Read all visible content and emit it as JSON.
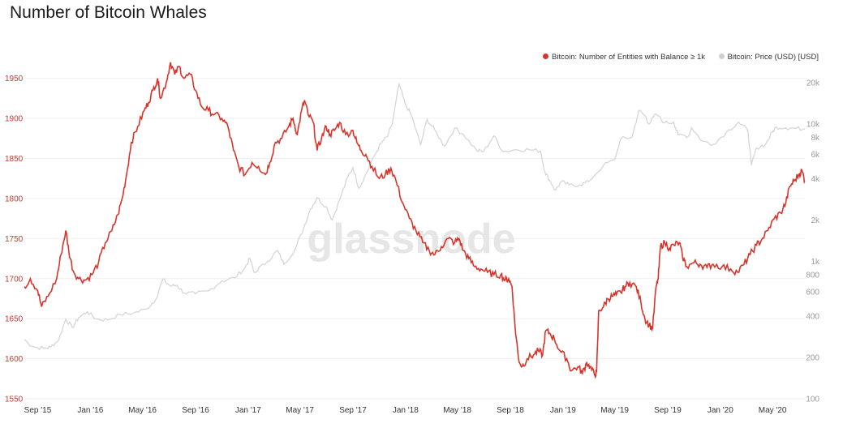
{
  "chart_data": {
    "type": "line",
    "title": "Number of Bitcoin Whales",
    "watermark": "glassnode",
    "legend_position": "top-right",
    "grid": true,
    "y_left": {
      "ylim": [
        1550,
        1975
      ],
      "ticks": [
        1550,
        1600,
        1650,
        1700,
        1750,
        1800,
        1850,
        1900,
        1950
      ]
    },
    "y_right": {
      "scale": "log",
      "ylim": [
        100,
        30000
      ],
      "ticks": [
        100,
        200,
        400,
        600,
        800,
        1000,
        2000,
        4000,
        6000,
        8000,
        10000,
        20000
      ],
      "tick_labels": [
        "100",
        "200",
        "400",
        "600",
        "800",
        "1k",
        "2k",
        "4k",
        "6k",
        "8k",
        "10k",
        "20k"
      ]
    },
    "x": {
      "range": [
        "2015-08-01",
        "2020-07-15"
      ],
      "ticks": [
        {
          "date": "2015-09-01",
          "label": "Sep '15"
        },
        {
          "date": "2016-01-01",
          "label": "Jan '16"
        },
        {
          "date": "2016-05-01",
          "label": "May '16"
        },
        {
          "date": "2016-09-01",
          "label": "Sep '16"
        },
        {
          "date": "2017-01-01",
          "label": "Jan '17"
        },
        {
          "date": "2017-05-01",
          "label": "May '17"
        },
        {
          "date": "2017-09-01",
          "label": "Sep '17"
        },
        {
          "date": "2018-01-01",
          "label": "Jan '18"
        },
        {
          "date": "2018-05-01",
          "label": "May '18"
        },
        {
          "date": "2018-09-01",
          "label": "Sep '18"
        },
        {
          "date": "2019-01-01",
          "label": "Jan '19"
        },
        {
          "date": "2019-05-01",
          "label": "May '19"
        },
        {
          "date": "2019-09-01",
          "label": "Sep '19"
        },
        {
          "date": "2020-01-01",
          "label": "Jan '20"
        },
        {
          "date": "2020-05-01",
          "label": "May '20"
        }
      ]
    },
    "series": [
      {
        "name": "Bitcoin: Number of Entities with Balance ≥ 1k",
        "color": "#d9342b",
        "axis": "left",
        "points": [
          [
            "2015-08-01",
            1690
          ],
          [
            "2015-08-15",
            1700
          ],
          [
            "2015-09-01",
            1685
          ],
          [
            "2015-09-10",
            1665
          ],
          [
            "2015-09-25",
            1678
          ],
          [
            "2015-10-15",
            1700
          ],
          [
            "2015-10-25",
            1730
          ],
          [
            "2015-11-05",
            1760
          ],
          [
            "2015-11-12",
            1735
          ],
          [
            "2015-11-22",
            1710
          ],
          [
            "2015-12-05",
            1700
          ],
          [
            "2015-12-20",
            1698
          ],
          [
            "2016-01-05",
            1705
          ],
          [
            "2016-01-20",
            1720
          ],
          [
            "2016-02-05",
            1745
          ],
          [
            "2016-02-20",
            1760
          ],
          [
            "2016-03-05",
            1780
          ],
          [
            "2016-03-15",
            1800
          ],
          [
            "2016-03-25",
            1830
          ],
          [
            "2016-04-05",
            1870
          ],
          [
            "2016-04-20",
            1890
          ],
          [
            "2016-05-05",
            1910
          ],
          [
            "2016-05-15",
            1920
          ],
          [
            "2016-05-25",
            1935
          ],
          [
            "2016-06-05",
            1950
          ],
          [
            "2016-06-12",
            1925
          ],
          [
            "2016-06-25",
            1945
          ],
          [
            "2016-07-05",
            1970
          ],
          [
            "2016-07-15",
            1955
          ],
          [
            "2016-07-25",
            1965
          ],
          [
            "2016-08-05",
            1950
          ],
          [
            "2016-08-20",
            1955
          ],
          [
            "2016-09-01",
            1935
          ],
          [
            "2016-09-15",
            1915
          ],
          [
            "2016-10-01",
            1910
          ],
          [
            "2016-10-15",
            1905
          ],
          [
            "2016-11-01",
            1900
          ],
          [
            "2016-11-15",
            1890
          ],
          [
            "2016-11-28",
            1860
          ],
          [
            "2016-12-10",
            1840
          ],
          [
            "2016-12-25",
            1830
          ],
          [
            "2017-01-10",
            1845
          ],
          [
            "2017-01-25",
            1840
          ],
          [
            "2017-02-10",
            1830
          ],
          [
            "2017-02-20",
            1845
          ],
          [
            "2017-03-05",
            1870
          ],
          [
            "2017-03-20",
            1875
          ],
          [
            "2017-04-05",
            1890
          ],
          [
            "2017-04-15",
            1900
          ],
          [
            "2017-04-25",
            1880
          ],
          [
            "2017-05-05",
            1910
          ],
          [
            "2017-05-12",
            1922
          ],
          [
            "2017-05-20",
            1905
          ],
          [
            "2017-06-01",
            1895
          ],
          [
            "2017-06-10",
            1860
          ],
          [
            "2017-06-20",
            1875
          ],
          [
            "2017-07-01",
            1890
          ],
          [
            "2017-07-10",
            1880
          ],
          [
            "2017-07-20",
            1885
          ],
          [
            "2017-08-01",
            1895
          ],
          [
            "2017-08-15",
            1880
          ],
          [
            "2017-09-01",
            1885
          ],
          [
            "2017-09-10",
            1870
          ],
          [
            "2017-09-20",
            1860
          ],
          [
            "2017-10-01",
            1855
          ],
          [
            "2017-10-15",
            1840
          ],
          [
            "2017-11-01",
            1825
          ],
          [
            "2017-11-15",
            1830
          ],
          [
            "2017-11-28",
            1838
          ],
          [
            "2017-12-10",
            1822
          ],
          [
            "2017-12-25",
            1795
          ],
          [
            "2018-01-10",
            1775
          ],
          [
            "2018-01-25",
            1760
          ],
          [
            "2018-02-10",
            1745
          ],
          [
            "2018-02-25",
            1735
          ],
          [
            "2018-03-10",
            1730
          ],
          [
            "2018-03-25",
            1740
          ],
          [
            "2018-04-10",
            1750
          ],
          [
            "2018-04-25",
            1745
          ],
          [
            "2018-05-05",
            1750
          ],
          [
            "2018-05-15",
            1735
          ],
          [
            "2018-05-28",
            1725
          ],
          [
            "2018-06-10",
            1715
          ],
          [
            "2018-06-25",
            1712
          ],
          [
            "2018-07-10",
            1708
          ],
          [
            "2018-07-25",
            1705
          ],
          [
            "2018-08-10",
            1705
          ],
          [
            "2018-08-20",
            1698
          ],
          [
            "2018-08-28",
            1700
          ],
          [
            "2018-09-05",
            1690
          ],
          [
            "2018-09-12",
            1640
          ],
          [
            "2018-09-20",
            1600
          ],
          [
            "2018-09-28",
            1590
          ],
          [
            "2018-10-10",
            1600
          ],
          [
            "2018-10-25",
            1605
          ],
          [
            "2018-11-05",
            1610
          ],
          [
            "2018-11-15",
            1605
          ],
          [
            "2018-11-22",
            1635
          ],
          [
            "2018-12-01",
            1632
          ],
          [
            "2018-12-12",
            1625
          ],
          [
            "2018-12-25",
            1610
          ],
          [
            "2019-01-10",
            1600
          ],
          [
            "2019-01-20",
            1585
          ],
          [
            "2019-02-05",
            1590
          ],
          [
            "2019-02-15",
            1582
          ],
          [
            "2019-02-25",
            1595
          ],
          [
            "2019-03-05",
            1590
          ],
          [
            "2019-03-15",
            1580
          ],
          [
            "2019-03-20",
            1583
          ],
          [
            "2019-03-25",
            1660
          ],
          [
            "2019-04-05",
            1665
          ],
          [
            "2019-04-15",
            1675
          ],
          [
            "2019-04-25",
            1678
          ],
          [
            "2019-05-05",
            1680
          ],
          [
            "2019-05-15",
            1683
          ],
          [
            "2019-05-25",
            1690
          ],
          [
            "2019-06-05",
            1695
          ],
          [
            "2019-06-20",
            1690
          ],
          [
            "2019-07-01",
            1670
          ],
          [
            "2019-07-10",
            1650
          ],
          [
            "2019-07-20",
            1642
          ],
          [
            "2019-07-28",
            1638
          ],
          [
            "2019-08-05",
            1690
          ],
          [
            "2019-08-10",
            1700
          ],
          [
            "2019-08-15",
            1740
          ],
          [
            "2019-08-25",
            1745
          ],
          [
            "2019-09-05",
            1738
          ],
          [
            "2019-09-15",
            1742
          ],
          [
            "2019-09-28",
            1745
          ],
          [
            "2019-10-05",
            1728
          ],
          [
            "2019-10-15",
            1715
          ],
          [
            "2019-11-01",
            1720
          ],
          [
            "2019-11-15",
            1718
          ],
          [
            "2019-12-01",
            1714
          ],
          [
            "2019-12-15",
            1718
          ],
          [
            "2020-01-05",
            1715
          ],
          [
            "2020-01-25",
            1712
          ],
          [
            "2020-02-10",
            1708
          ],
          [
            "2020-02-25",
            1718
          ],
          [
            "2020-03-10",
            1730
          ],
          [
            "2020-03-25",
            1742
          ],
          [
            "2020-04-05",
            1748
          ],
          [
            "2020-04-20",
            1760
          ],
          [
            "2020-05-05",
            1775
          ],
          [
            "2020-05-20",
            1782
          ],
          [
            "2020-06-01",
            1795
          ],
          [
            "2020-06-10",
            1815
          ],
          [
            "2020-06-20",
            1822
          ],
          [
            "2020-07-01",
            1830
          ],
          [
            "2020-07-08",
            1835
          ],
          [
            "2020-07-15",
            1822
          ]
        ]
      },
      {
        "name": "Bitcoin: Price (USD) [USD]",
        "color": "#d6d6d6",
        "axis": "right",
        "points": [
          [
            "2015-08-01",
            270
          ],
          [
            "2015-08-20",
            240
          ],
          [
            "2015-09-15",
            232
          ],
          [
            "2015-10-01",
            238
          ],
          [
            "2015-10-20",
            270
          ],
          [
            "2015-11-05",
            380
          ],
          [
            "2015-11-20",
            330
          ],
          [
            "2015-12-05",
            390
          ],
          [
            "2015-12-25",
            430
          ],
          [
            "2016-01-15",
            380
          ],
          [
            "2016-02-10",
            375
          ],
          [
            "2016-03-10",
            410
          ],
          [
            "2016-04-10",
            420
          ],
          [
            "2016-05-10",
            450
          ],
          [
            "2016-06-01",
            530
          ],
          [
            "2016-06-17",
            740
          ],
          [
            "2016-07-05",
            660
          ],
          [
            "2016-07-20",
            670
          ],
          [
            "2016-08-05",
            590
          ],
          [
            "2016-09-01",
            580
          ],
          [
            "2016-10-01",
            610
          ],
          [
            "2016-11-01",
            720
          ],
          [
            "2016-12-01",
            760
          ],
          [
            "2016-12-25",
            900
          ],
          [
            "2017-01-05",
            1050
          ],
          [
            "2017-01-15",
            830
          ],
          [
            "2017-02-15",
            1000
          ],
          [
            "2017-03-10",
            1200
          ],
          [
            "2017-03-25",
            950
          ],
          [
            "2017-04-20",
            1230
          ],
          [
            "2017-05-10",
            1750
          ],
          [
            "2017-05-25",
            2400
          ],
          [
            "2017-06-10",
            2900
          ],
          [
            "2017-07-01",
            2500
          ],
          [
            "2017-07-15",
            2000
          ],
          [
            "2017-08-01",
            2800
          ],
          [
            "2017-08-20",
            4100
          ],
          [
            "2017-09-01",
            4800
          ],
          [
            "2017-09-15",
            3400
          ],
          [
            "2017-10-01",
            4300
          ],
          [
            "2017-10-20",
            5800
          ],
          [
            "2017-11-05",
            7200
          ],
          [
            "2017-11-20",
            8100
          ],
          [
            "2017-12-01",
            10000
          ],
          [
            "2017-12-17",
            19500
          ],
          [
            "2017-12-31",
            14000
          ],
          [
            "2018-01-15",
            11500
          ],
          [
            "2018-02-05",
            7000
          ],
          [
            "2018-02-20",
            10800
          ],
          [
            "2018-03-10",
            9000
          ],
          [
            "2018-04-01",
            6900
          ],
          [
            "2018-04-25",
            9300
          ],
          [
            "2018-05-15",
            8400
          ],
          [
            "2018-06-15",
            6400
          ],
          [
            "2018-07-01",
            6300
          ],
          [
            "2018-07-25",
            8200
          ],
          [
            "2018-08-15",
            6300
          ],
          [
            "2018-09-15",
            6500
          ],
          [
            "2018-10-15",
            6500
          ],
          [
            "2018-11-10",
            6350
          ],
          [
            "2018-11-20",
            4500
          ],
          [
            "2018-12-01",
            3900
          ],
          [
            "2018-12-15",
            3300
          ],
          [
            "2018-12-28",
            3800
          ],
          [
            "2019-01-15",
            3600
          ],
          [
            "2019-02-10",
            3600
          ],
          [
            "2019-03-01",
            3800
          ],
          [
            "2019-04-05",
            5000
          ],
          [
            "2019-05-01",
            5500
          ],
          [
            "2019-05-15",
            7800
          ],
          [
            "2019-06-10",
            8000
          ],
          [
            "2019-06-26",
            12500
          ],
          [
            "2019-07-10",
            11500
          ],
          [
            "2019-07-20",
            10000
          ],
          [
            "2019-08-05",
            11800
          ],
          [
            "2019-08-25",
            10200
          ],
          [
            "2019-09-15",
            10300
          ],
          [
            "2019-09-25",
            8300
          ],
          [
            "2019-10-20",
            8200
          ],
          [
            "2019-10-26",
            9400
          ],
          [
            "2019-11-20",
            7500
          ],
          [
            "2019-12-15",
            7100
          ],
          [
            "2020-01-15",
            8700
          ],
          [
            "2020-02-12",
            10300
          ],
          [
            "2020-03-05",
            8900
          ],
          [
            "2020-03-13",
            5000
          ],
          [
            "2020-03-25",
            6700
          ],
          [
            "2020-04-15",
            7100
          ],
          [
            "2020-04-30",
            8700
          ],
          [
            "2020-05-10",
            9500
          ],
          [
            "2020-06-01",
            9400
          ],
          [
            "2020-06-20",
            9300
          ],
          [
            "2020-07-15",
            9200
          ]
        ]
      }
    ]
  }
}
